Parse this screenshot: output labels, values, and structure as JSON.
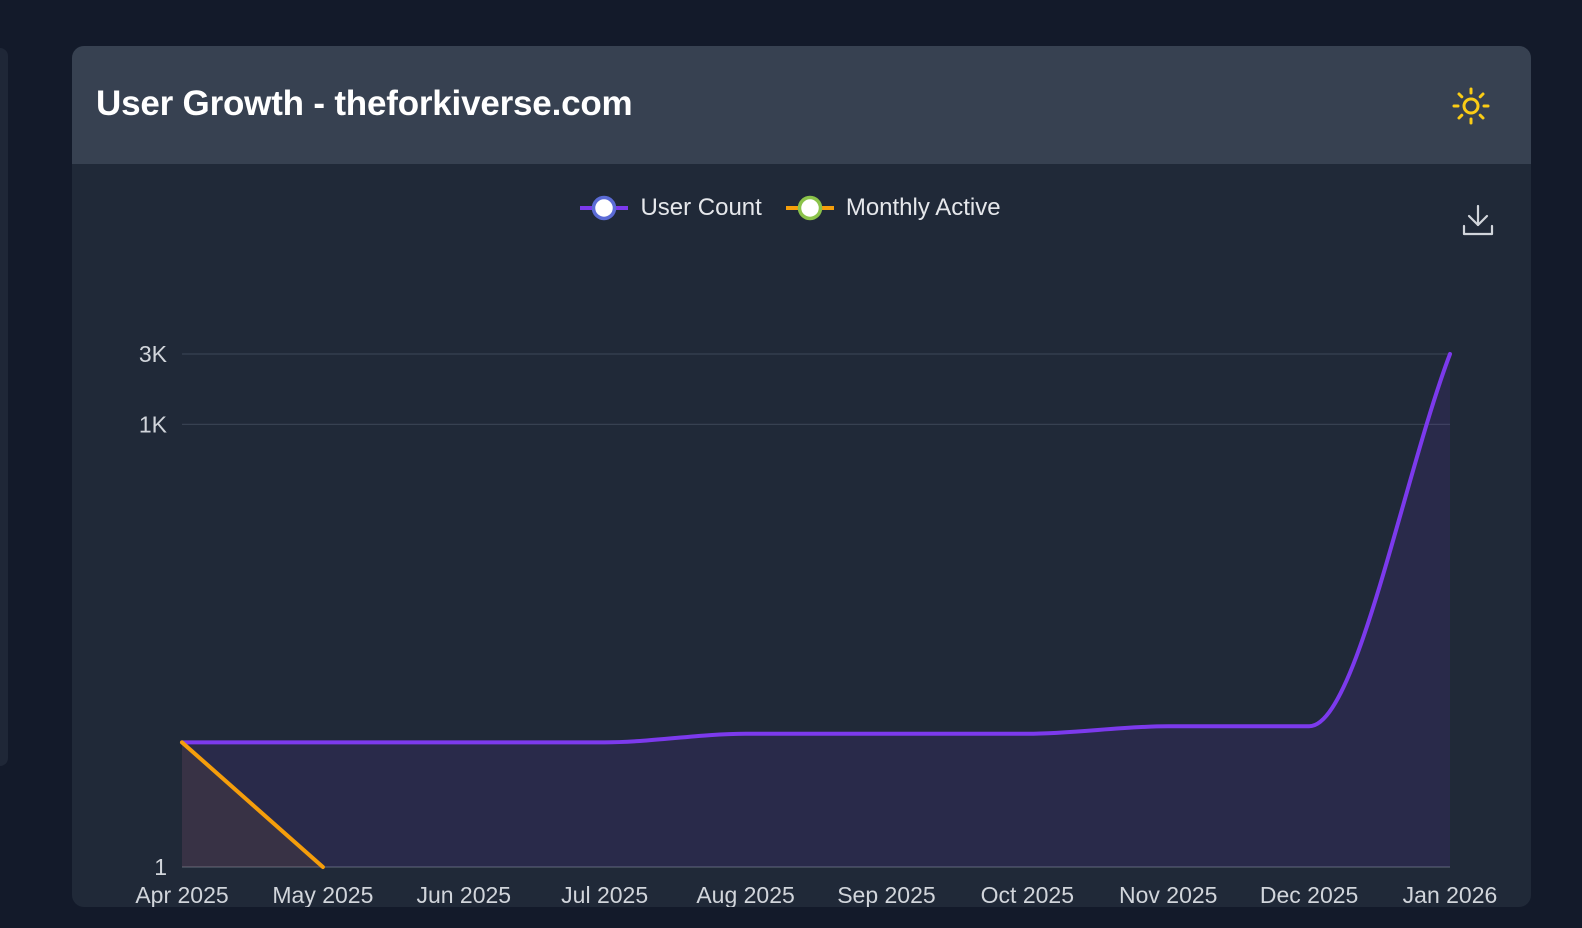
{
  "card": {
    "title": "User Growth - theforkiverse.com"
  },
  "icons": {
    "theme": "sun-icon",
    "download": "download-icon"
  },
  "colors": {
    "background": "#131a2a",
    "card": "#202938",
    "header": "#374151",
    "user_count_line": "#7c3aed",
    "monthly_active_line": "#f59e0b",
    "sun": "#facc15"
  },
  "chart_data": {
    "type": "line",
    "title": "",
    "xlabel": "",
    "ylabel": "",
    "yscale": "log",
    "ylim": [
      1,
      3000
    ],
    "y_ticks": [
      {
        "value": 1,
        "label": "1"
      },
      {
        "value": 1000,
        "label": "1K"
      },
      {
        "value": 3000,
        "label": "3K"
      }
    ],
    "categories": [
      "Apr 2025",
      "May 2025",
      "Jun 2025",
      "Jul 2025",
      "Aug 2025",
      "Sep 2025",
      "Oct 2025",
      "Nov 2025",
      "Dec 2025",
      "Jan 2026"
    ],
    "legend": "top-center",
    "grid": true,
    "series": [
      {
        "name": "User Count",
        "color": "#7c3aed",
        "marker_border": "#5b6bd6",
        "values": [
          7,
          7,
          7,
          7,
          8,
          8,
          8,
          9,
          9,
          3000
        ]
      },
      {
        "name": "Monthly Active",
        "color": "#f59e0b",
        "marker_border": "#8bc34a",
        "values": [
          7,
          1,
          null,
          null,
          null,
          null,
          null,
          null,
          null,
          null
        ]
      }
    ]
  }
}
